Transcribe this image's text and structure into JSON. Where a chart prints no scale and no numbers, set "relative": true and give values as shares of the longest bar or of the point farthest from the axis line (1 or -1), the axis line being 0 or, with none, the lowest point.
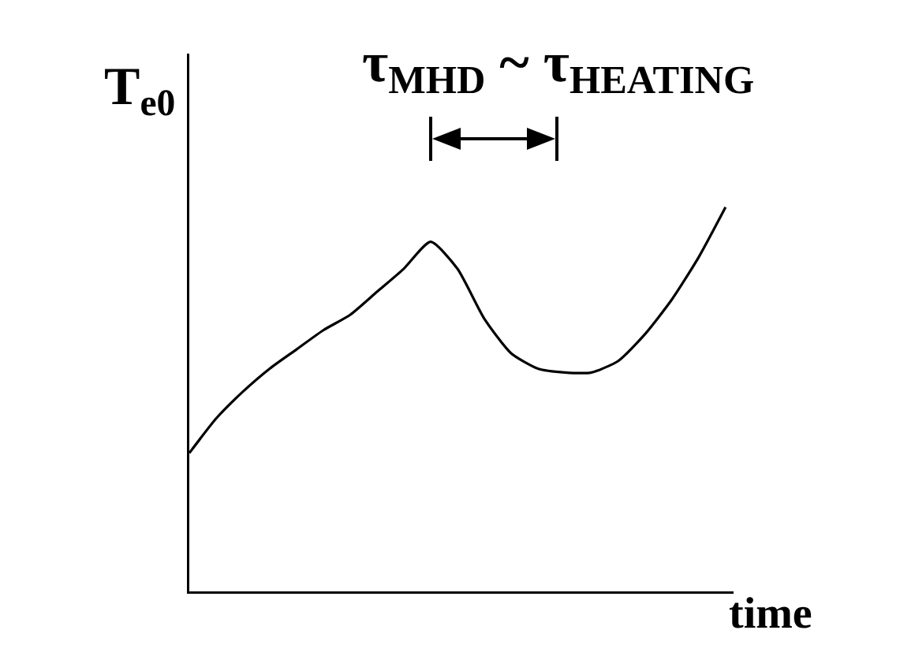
{
  "chart_data": {
    "type": "line",
    "title": "τ$_{MHD}$ ~ τ$_{HEATING}$",
    "ylabel": "T$_{e0}$",
    "xlabel": "time",
    "relative": true,
    "line_style": "solid",
    "color": "#000000",
    "categories": [
      null,
      null,
      null,
      null,
      null,
      null,
      null,
      null,
      null,
      null,
      null,
      null,
      null,
      null,
      null,
      null,
      null,
      null,
      null,
      null,
      null
    ],
    "values": [
      0.36,
      0.45,
      0.52,
      0.58,
      0.63,
      0.68,
      0.72,
      0.78,
      0.84,
      0.91,
      0.84,
      0.71,
      0.62,
      0.58,
      0.57,
      0.57,
      0.6,
      0.67,
      0.76,
      0.87,
      1.0
    ]
  }
}
